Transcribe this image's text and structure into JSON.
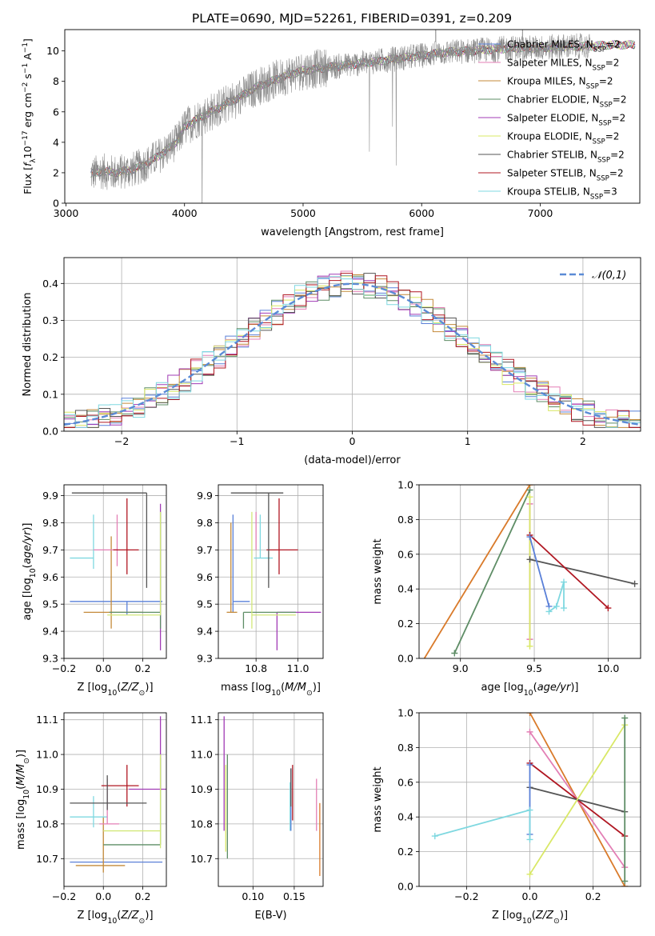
{
  "figure": {
    "title": "PLATE=0690, MJD=52261, FIBERID=0391, z=0.209",
    "palette": [
      "#5a80d8",
      "#e37fb5",
      "#c48a3a",
      "#5e8d66",
      "#a13bb5",
      "#d9e866",
      "#555555",
      "#b01722",
      "#7fd8e0",
      "#d2e879",
      "#6fc17a",
      "#d97a2a"
    ]
  },
  "chart_data": [
    {
      "id": "spectrum",
      "type": "line",
      "title": "PLATE=0690, MJD=52261, FIBERID=0391, z=0.209",
      "xlabel": "wavelength [Angstrom, rest frame]",
      "ylabel": "Flux [fλ10⁻¹⁷ erg cm⁻² s⁻¹ A⁻¹]",
      "xlim": [
        2990,
        7840
      ],
      "ylim": [
        0,
        11.4
      ],
      "xticks": [
        3000,
        4000,
        5000,
        6000,
        7000
      ],
      "yticks": [
        0,
        2,
        4,
        6,
        8,
        10
      ],
      "grid": false,
      "legend_position": "top-right",
      "data_color": "#888888",
      "series": [
        {
          "name": "Chabrier MILES, N_SSP=2",
          "color": "#5a80d8"
        },
        {
          "name": "Salpeter MILES, N_SSP=2",
          "color": "#e37fb5"
        },
        {
          "name": "Kroupa MILES, N_SSP=2",
          "color": "#c48a3a"
        },
        {
          "name": "Chabrier ELODIE, N_SSP=2",
          "color": "#5e8d66"
        },
        {
          "name": "Salpeter ELODIE, N_SSP=2",
          "color": "#a13bb5"
        },
        {
          "name": "Kroupa ELODIE, N_SSP=2",
          "color": "#d9e866"
        },
        {
          "name": "Chabrier STELIB, N_SSP=2",
          "color": "#555555"
        },
        {
          "name": "Salpeter STELIB, N_SSP=2",
          "color": "#b01722"
        },
        {
          "name": "Kroupa STELIB, N_SSP=3",
          "color": "#7fd8e0"
        }
      ],
      "continuum": {
        "x": [
          3210,
          3300,
          3400,
          3500,
          3600,
          3700,
          3800,
          3900,
          3950,
          4000,
          4100,
          4200,
          4300,
          4400,
          4500,
          4600,
          4700,
          4800,
          4900,
          5000,
          5200,
          5400,
          5600,
          5800,
          6000,
          6200,
          6400,
          6600,
          6800,
          7000,
          7200,
          7400,
          7600,
          7800
        ],
        "y": [
          1.9,
          2.1,
          2.0,
          2.1,
          2.3,
          2.7,
          3.2,
          3.8,
          4.2,
          5.0,
          5.5,
          5.9,
          6.3,
          6.7,
          7.1,
          7.6,
          7.9,
          8.2,
          8.5,
          8.7,
          8.9,
          9.1,
          9.3,
          9.5,
          9.7,
          9.9,
          10.0,
          10.1,
          10.2,
          10.2,
          10.3,
          10.3,
          10.4,
          10.4
        ]
      }
    },
    {
      "id": "residuals",
      "type": "histogram",
      "xlabel": "(data-model)/error",
      "ylabel": "Normed distribution",
      "xlim": [
        -2.5,
        2.5
      ],
      "ylim": [
        0,
        0.47
      ],
      "xticks": [
        -2,
        -1,
        0,
        1,
        2
      ],
      "yticks": [
        0.0,
        0.1,
        0.2,
        0.3,
        0.4
      ],
      "grid": true,
      "legend_position": "top-right",
      "legend": [
        "𝒩(0,1)"
      ],
      "bin_edges_start": -2.5,
      "bin_width": 0.1,
      "gaussian": {
        "mu": 0,
        "sigma": 1,
        "color": "#5b8bd6"
      },
      "hist_colors": [
        "#5a80d8",
        "#e37fb5",
        "#c48a3a",
        "#5e8d66",
        "#a13bb5",
        "#d9e866",
        "#555555",
        "#b01722",
        "#7fd8e0"
      ]
    },
    {
      "id": "age_vs_Z",
      "type": "errorbar",
      "xlabel": "Z [log10(Z/Z⊙)]",
      "ylabel": "age  [log10(age/yr)]",
      "xlim": [
        -0.2,
        0.32
      ],
      "ylim": [
        9.3,
        9.94
      ],
      "xticks": [
        -0.2,
        0.0,
        0.2
      ],
      "yticks": [
        9.3,
        9.4,
        9.5,
        9.6,
        9.7,
        9.8,
        9.9
      ],
      "grid": true,
      "points": [
        {
          "x": 0.12,
          "xerr": [
            0.29,
            0.18
          ],
          "y": 9.51,
          "yerr": [
            0.05,
            0.0
          ],
          "color": "#5a80d8"
        },
        {
          "x": 0.04,
          "xerr": [
            0.14,
            0.16
          ],
          "y": 9.47,
          "yerr": [
            0.06,
            0.28
          ],
          "color": "#c48a3a"
        },
        {
          "x": -0.05,
          "xerr": [
            0.12,
            0.0
          ],
          "y": 9.67,
          "yerr": [
            0.04,
            0.16
          ],
          "color": "#7fd8e0"
        },
        {
          "x": 0.07,
          "xerr": [
            0.12,
            0.0
          ],
          "y": 9.7,
          "yerr": [
            0.06,
            0.13
          ],
          "color": "#e37fb5"
        },
        {
          "x": 0.12,
          "xerr": [
            0.07,
            0.06
          ],
          "y": 9.7,
          "yerr": [
            0.09,
            0.19
          ],
          "color": "#b01722"
        },
        {
          "x": 0.22,
          "xerr": [
            0.38,
            0.0
          ],
          "y": 9.91,
          "yerr": [
            0.35,
            0.0
          ],
          "color": "#555555"
        },
        {
          "x": 0.29,
          "xerr": [
            0.0,
            0.0
          ],
          "y": 9.83,
          "yerr": [
            0.5,
            0.04
          ],
          "color": "#a13bb5"
        },
        {
          "x": 0.29,
          "xerr": [
            0.26,
            0.0
          ],
          "y": 9.47,
          "yerr": [
            0.06,
            0.37
          ],
          "color": "#5e8d66"
        },
        {
          "x": 0.29,
          "xerr": [
            0.27,
            0.0
          ],
          "y": 9.46,
          "yerr": [
            0.0,
            0.38
          ],
          "color": "#d2e879"
        }
      ]
    },
    {
      "id": "age_vs_mass",
      "type": "errorbar",
      "xlabel": "mass [log10(M/M⊙)]",
      "ylabel": "",
      "xlim": [
        10.62,
        11.12
      ],
      "ylim": [
        9.3,
        9.94
      ],
      "xticks": [
        10.8,
        11.0
      ],
      "yticks": [
        9.3,
        9.4,
        9.5,
        9.6,
        9.7,
        9.8,
        9.9
      ],
      "grid": true,
      "points": [
        {
          "x": 10.69,
          "xerr": [
            0.0,
            0.08
          ],
          "y": 9.51,
          "yerr": [
            0.04,
            0.32
          ],
          "color": "#5a80d8"
        },
        {
          "x": 10.68,
          "xerr": [
            0.02,
            0.03
          ],
          "y": 9.47,
          "yerr": [
            0.0,
            0.33
          ],
          "color": "#c48a3a"
        },
        {
          "x": 10.82,
          "xerr": [
            0.03,
            0.06
          ],
          "y": 9.67,
          "yerr": [
            0.0,
            0.16
          ],
          "color": "#7fd8e0"
        },
        {
          "x": 10.8,
          "xerr": [
            0.0,
            0.0
          ],
          "y": 9.7,
          "yerr": [
            0.0,
            0.14
          ],
          "color": "#e37fb5"
        },
        {
          "x": 10.91,
          "xerr": [
            0.06,
            0.09
          ],
          "y": 9.7,
          "yerr": [
            0.09,
            0.19
          ],
          "color": "#b01722"
        },
        {
          "x": 10.86,
          "xerr": [
            0.18,
            0.07
          ],
          "y": 9.91,
          "yerr": [
            0.35,
            0.0
          ],
          "color": "#555555"
        },
        {
          "x": 10.9,
          "xerr": [
            0.0,
            0.21
          ],
          "y": 9.47,
          "yerr": [
            0.14,
            0.0
          ],
          "color": "#a13bb5"
        },
        {
          "x": 10.74,
          "xerr": [
            0.0,
            0.25
          ],
          "y": 9.47,
          "yerr": [
            0.06,
            0.0
          ],
          "color": "#5e8d66"
        },
        {
          "x": 10.78,
          "xerr": [
            0.0,
            0.21
          ],
          "y": 9.46,
          "yerr": [
            0.05,
            0.38
          ],
          "color": "#d2e879"
        }
      ]
    },
    {
      "id": "weight_vs_age",
      "type": "line",
      "xlabel": "age  [log10(age/yr)]",
      "ylabel": "mass weight",
      "xlim": [
        8.72,
        10.22
      ],
      "ylim": [
        0,
        1.0
      ],
      "xticks": [
        9.0,
        9.5,
        10.0
      ],
      "yticks": [
        0.0,
        0.2,
        0.4,
        0.6,
        0.8,
        1.0
      ],
      "grid": true,
      "series": [
        {
          "color": "#d97a2a",
          "x": [
            8.72,
            9.47
          ],
          "y": [
            -0.05,
            1.0
          ]
        },
        {
          "color": "#5e8d66",
          "x": [
            8.96,
            9.47
          ],
          "y": [
            0.03,
            0.97
          ]
        },
        {
          "color": "#e37fb5",
          "x": [
            9.47,
            9.47
          ],
          "y": [
            0.11,
            0.89
          ]
        },
        {
          "color": "#d9e866",
          "x": [
            9.47,
            9.47
          ],
          "y": [
            0.07,
            0.93
          ]
        },
        {
          "color": "#555555",
          "x": [
            9.47,
            10.18
          ],
          "y": [
            0.57,
            0.43
          ]
        },
        {
          "color": "#b01722",
          "x": [
            9.47,
            10.0
          ],
          "y": [
            0.71,
            0.29
          ]
        },
        {
          "color": "#5a80d8",
          "x": [
            9.47,
            9.6
          ],
          "y": [
            0.7,
            0.3
          ]
        },
        {
          "color": "#7fd8e0",
          "x": [
            9.6,
            9.65,
            9.7,
            9.7
          ],
          "y": [
            0.27,
            0.3,
            0.44,
            0.29
          ]
        }
      ]
    },
    {
      "id": "mass_vs_Z",
      "type": "errorbar",
      "xlabel": "Z [log10(Z/Z⊙)]",
      "ylabel": "mass [log10(M/M⊙)]",
      "xlim": [
        -0.2,
        0.32
      ],
      "ylim": [
        10.62,
        11.12
      ],
      "xticks": [
        -0.2,
        0.0,
        0.2
      ],
      "yticks": [
        10.7,
        10.8,
        10.9,
        11.0,
        11.1
      ],
      "grid": true,
      "points": [
        {
          "x": 0.12,
          "xerr": [
            0.29,
            0.18
          ],
          "y": 10.69,
          "yerr": [
            0.0,
            0.0
          ],
          "color": "#5a80d8"
        },
        {
          "x": 0.0,
          "xerr": [
            0.14,
            0.11
          ],
          "y": 10.68,
          "yerr": [
            0.02,
            0.14
          ],
          "color": "#c48a3a"
        },
        {
          "x": -0.05,
          "xerr": [
            0.12,
            0.07
          ],
          "y": 10.82,
          "yerr": [
            0.03,
            0.06
          ],
          "color": "#7fd8e0"
        },
        {
          "x": 0.02,
          "xerr": [
            0.04,
            0.06
          ],
          "y": 10.8,
          "yerr": [
            0.0,
            0.13
          ],
          "color": "#e37fb5"
        },
        {
          "x": 0.12,
          "xerr": [
            0.13,
            0.06
          ],
          "y": 10.91,
          "yerr": [
            0.06,
            0.06
          ],
          "color": "#b01722"
        },
        {
          "x": 0.02,
          "xerr": [
            0.19,
            0.2
          ],
          "y": 10.86,
          "yerr": [
            0.02,
            0.08
          ],
          "color": "#555555"
        },
        {
          "x": 0.29,
          "xerr": [
            0.16,
            0.03
          ],
          "y": 10.9,
          "yerr": [
            0.0,
            0.21
          ],
          "color": "#a13bb5"
        },
        {
          "x": 0.29,
          "xerr": [
            0.29,
            0.0
          ],
          "y": 10.74,
          "yerr": [
            0.0,
            0.25
          ],
          "color": "#5e8d66"
        },
        {
          "x": 0.29,
          "xerr": [
            0.29,
            0.0
          ],
          "y": 10.78,
          "yerr": [
            0.05,
            0.22
          ],
          "color": "#d2e879"
        }
      ]
    },
    {
      "id": "mass_vs_EBV",
      "type": "errorbar",
      "xlabel": "E(B-V)",
      "ylabel": "",
      "xlim": [
        0.058,
        0.185
      ],
      "ylim": [
        10.62,
        11.12
      ],
      "xticks": [
        0.1,
        0.15
      ],
      "yticks": [
        10.7,
        10.8,
        10.9,
        11.0,
        11.1
      ],
      "grid": true,
      "points": [
        {
          "x": 0.065,
          "y": 10.9,
          "yerr": [
            0.12,
            0.21
          ],
          "color": "#a13bb5"
        },
        {
          "x": 0.067,
          "y": 10.85,
          "yerr": [
            0.13,
            0.12
          ],
          "color": "#d9e866"
        },
        {
          "x": 0.069,
          "y": 10.85,
          "yerr": [
            0.15,
            0.15
          ],
          "color": "#5e8d66"
        },
        {
          "x": 0.145,
          "y": 10.85,
          "yerr": [
            0.07,
            0.07
          ],
          "color": "#7fd8e0"
        },
        {
          "x": 0.146,
          "y": 10.88,
          "yerr": [
            0.1,
            0.08
          ],
          "color": "#5a80d8"
        },
        {
          "x": 0.146,
          "y": 10.9,
          "yerr": [
            0.05,
            0.06
          ],
          "color": "#555555"
        },
        {
          "x": 0.148,
          "y": 10.88,
          "yerr": [
            0.07,
            0.09
          ],
          "color": "#b01722"
        },
        {
          "x": 0.177,
          "y": 10.83,
          "yerr": [
            0.05,
            0.1
          ],
          "color": "#e37fb5"
        },
        {
          "x": 0.181,
          "y": 10.75,
          "yerr": [
            0.1,
            0.11
          ],
          "color": "#d97a2a"
        }
      ]
    },
    {
      "id": "weight_vs_Z",
      "type": "line",
      "xlabel": "Z [log10(Z/Z⊙)]",
      "ylabel": "mass weight",
      "xlim": [
        -0.35,
        0.35
      ],
      "ylim": [
        0,
        1.0
      ],
      "xticks": [
        -0.2,
        0.0,
        0.2
      ],
      "yticks": [
        0.0,
        0.2,
        0.4,
        0.6,
        0.8,
        1.0
      ],
      "grid": true,
      "series": [
        {
          "color": "#d97a2a",
          "x": [
            0.0,
            0.3
          ],
          "y": [
            1.0,
            0.0
          ]
        },
        {
          "color": "#e37fb5",
          "x": [
            0.0,
            0.3
          ],
          "y": [
            0.89,
            0.11
          ]
        },
        {
          "color": "#b01722",
          "x": [
            0.0,
            0.3
          ],
          "y": [
            0.71,
            0.29
          ]
        },
        {
          "color": "#555555",
          "x": [
            0.0,
            0.3
          ],
          "y": [
            0.57,
            0.43
          ]
        },
        {
          "color": "#d9e866",
          "x": [
            0.0,
            0.3
          ],
          "y": [
            0.07,
            0.93
          ]
        },
        {
          "color": "#5e8d66",
          "x": [
            0.3,
            0.3
          ],
          "y": [
            0.03,
            0.97
          ]
        },
        {
          "color": "#5a80d8",
          "x": [
            0.0,
            0.0
          ],
          "y": [
            0.3,
            0.7
          ]
        },
        {
          "color": "#7fd8e0",
          "x": [
            -0.3,
            0.0,
            0.0
          ],
          "y": [
            0.29,
            0.44,
            0.27
          ]
        }
      ]
    }
  ]
}
